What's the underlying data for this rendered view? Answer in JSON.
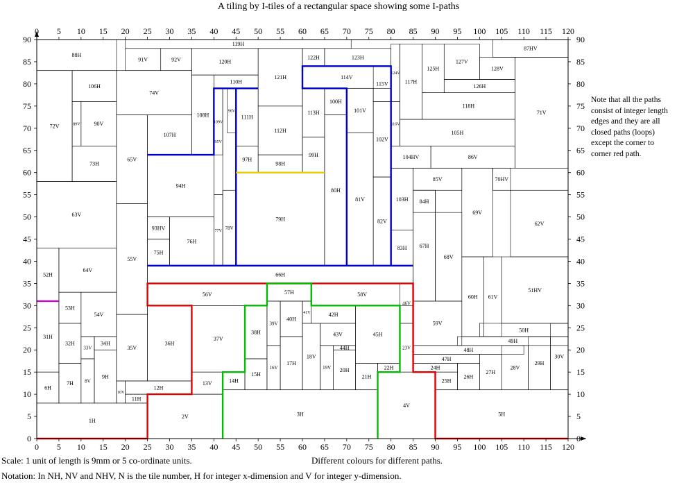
{
  "title": "A tiling by I-tiles of a rectangular space showing some I-paths",
  "note": "Note that all the paths consist of integer length edges and they are all closed paths (loops) except the corner to corner red path.",
  "scale_text": "Scale: 1 unit of length is 9mm or 5 co-ordinate units.",
  "colours_text": "Different colours for different paths.",
  "notation_text": "Notation: In NH, NV and NHV, N is the tile number, H for integer x-dimension and V for integer y-dimension.",
  "axes": {
    "x_ticks": [
      0,
      5,
      10,
      15,
      20,
      25,
      30,
      35,
      40,
      45,
      50,
      55,
      60,
      65,
      70,
      75,
      80,
      85,
      90,
      95,
      100,
      105,
      110,
      115,
      120
    ],
    "y_ticks": [
      0,
      5,
      10,
      15,
      20,
      25,
      30,
      35,
      40,
      45,
      50,
      55,
      60,
      65,
      70,
      75,
      80,
      85,
      90
    ],
    "x_range": [
      0,
      120
    ],
    "y_range": [
      0,
      90
    ]
  },
  "tiles": [
    {
      "id": "1H",
      "x": [
        0,
        25
      ],
      "y": [
        0,
        8
      ]
    },
    {
      "id": "2V",
      "x": [
        25,
        42
      ],
      "y": [
        0,
        10
      ]
    },
    {
      "id": "3H",
      "x": [
        42,
        77
      ],
      "y": [
        0,
        11
      ]
    },
    {
      "id": "4V",
      "x": [
        77,
        90
      ],
      "y": [
        0,
        15
      ]
    },
    {
      "id": "5H",
      "x": [
        90,
        120
      ],
      "y": [
        0,
        11
      ]
    },
    {
      "id": "6H",
      "x": [
        0,
        5
      ],
      "y": [
        8,
        15
      ]
    },
    {
      "id": "7H",
      "x": [
        5,
        10
      ],
      "y": [
        8,
        17
      ]
    },
    {
      "id": "8V",
      "x": [
        10,
        13
      ],
      "y": [
        8,
        18
      ]
    },
    {
      "id": "9H",
      "x": [
        13,
        18
      ],
      "y": [
        8,
        20
      ]
    },
    {
      "id": "10V",
      "x": [
        18,
        20
      ],
      "y": [
        8,
        13
      ]
    },
    {
      "id": "11H",
      "x": [
        20,
        25
      ],
      "y": [
        8,
        10
      ]
    },
    {
      "id": "12H",
      "x": [
        20,
        35
      ],
      "y": [
        10,
        13
      ]
    },
    {
      "id": "13V",
      "x": [
        35,
        42
      ],
      "y": [
        10,
        15
      ]
    },
    {
      "id": "14H",
      "x": [
        42,
        47
      ],
      "y": [
        11,
        15
      ]
    },
    {
      "id": "15H",
      "x": [
        47,
        52
      ],
      "y": [
        11,
        18
      ]
    },
    {
      "id": "16V",
      "x": [
        52,
        55
      ],
      "y": [
        11,
        21
      ]
    },
    {
      "id": "17H",
      "x": [
        55,
        60
      ],
      "y": [
        11,
        23
      ]
    },
    {
      "id": "18V",
      "x": [
        60,
        64
      ],
      "y": [
        11,
        26
      ]
    },
    {
      "id": "19V",
      "x": [
        64,
        67
      ],
      "y": [
        11,
        21
      ]
    },
    {
      "id": "20H",
      "x": [
        67,
        72
      ],
      "y": [
        11,
        20
      ]
    },
    {
      "id": "21H",
      "x": [
        72,
        77
      ],
      "y": [
        11,
        17
      ]
    },
    {
      "id": "22H",
      "x": [
        77,
        82
      ],
      "y": [
        15,
        17
      ]
    },
    {
      "id": "23V",
      "x": [
        82,
        85
      ],
      "y": [
        15,
        26
      ]
    },
    {
      "id": "24H",
      "x": [
        85,
        95
      ],
      "y": [
        15,
        17
      ]
    },
    {
      "id": "25H",
      "x": [
        90,
        95
      ],
      "y": [
        11,
        15
      ]
    },
    {
      "id": "26H",
      "x": [
        95,
        100
      ],
      "y": [
        11,
        17
      ]
    },
    {
      "id": "27H",
      "x": [
        100,
        105
      ],
      "y": [
        11,
        19
      ]
    },
    {
      "id": "28V",
      "x": [
        105,
        111
      ],
      "y": [
        11,
        21
      ]
    },
    {
      "id": "29H",
      "x": [
        111,
        116
      ],
      "y": [
        11,
        23
      ]
    },
    {
      "id": "30V",
      "x": [
        116,
        120
      ],
      "y": [
        11,
        26
      ]
    },
    {
      "id": "31H",
      "x": [
        0,
        5
      ],
      "y": [
        15,
        31
      ]
    },
    {
      "id": "32H",
      "x": [
        5,
        10
      ],
      "y": [
        17,
        26
      ]
    },
    {
      "id": "33V",
      "x": [
        10,
        13
      ],
      "y": [
        18,
        23
      ]
    },
    {
      "id": "34H",
      "x": [
        13,
        18
      ],
      "y": [
        20,
        23
      ]
    },
    {
      "id": "35V",
      "x": [
        18,
        25
      ],
      "y": [
        13,
        28
      ]
    },
    {
      "id": "36H",
      "x": [
        25,
        35
      ],
      "y": [
        13,
        30
      ]
    },
    {
      "id": "37V",
      "x": [
        35,
        47
      ],
      "y": [
        15,
        30
      ]
    },
    {
      "id": "38H",
      "x": [
        47,
        52
      ],
      "y": [
        18,
        30
      ]
    },
    {
      "id": "39V",
      "x": [
        52,
        55
      ],
      "y": [
        21,
        31
      ]
    },
    {
      "id": "40H",
      "x": [
        55,
        60
      ],
      "y": [
        23,
        31
      ]
    },
    {
      "id": "41V",
      "x": [
        60,
        62
      ],
      "y": [
        26,
        31
      ]
    },
    {
      "id": "42H",
      "x": [
        62,
        72
      ],
      "y": [
        26,
        30
      ]
    },
    {
      "id": "43V",
      "x": [
        64,
        72
      ],
      "y": [
        21,
        26
      ]
    },
    {
      "id": "44H",
      "x": [
        67,
        72
      ],
      "y": [
        20,
        21
      ]
    },
    {
      "id": "45H",
      "x": [
        72,
        82
      ],
      "y": [
        17,
        30
      ]
    },
    {
      "id": "46V",
      "x": [
        82,
        85
      ],
      "y": [
        26,
        35
      ]
    },
    {
      "id": "47H",
      "x": [
        85,
        100
      ],
      "y": [
        17,
        19
      ]
    },
    {
      "id": "48H",
      "x": [
        85,
        110
      ],
      "y": [
        19,
        21
      ]
    },
    {
      "id": "49H",
      "x": [
        95,
        120
      ],
      "y": [
        21,
        23
      ]
    },
    {
      "id": "50H",
      "x": [
        100,
        120
      ],
      "y": [
        23,
        26
      ]
    },
    {
      "id": "51HV",
      "x": [
        105,
        120
      ],
      "y": [
        26,
        41
      ]
    },
    {
      "id": "52H",
      "x": [
        0,
        5
      ],
      "y": [
        31,
        43
      ]
    },
    {
      "id": "53H",
      "x": [
        5,
        10
      ],
      "y": [
        26,
        33
      ]
    },
    {
      "id": "54V",
      "x": [
        10,
        18
      ],
      "y": [
        23,
        33
      ]
    },
    {
      "id": "55V",
      "x": [
        18,
        25
      ],
      "y": [
        28,
        53
      ]
    },
    {
      "id": "56V",
      "x": [
        25,
        52
      ],
      "y": [
        30,
        35
      ]
    },
    {
      "id": "57H",
      "x": [
        52,
        62
      ],
      "y": [
        31,
        35
      ]
    },
    {
      "id": "58V",
      "x": [
        62,
        85
      ],
      "y": [
        30,
        35
      ]
    },
    {
      "id": "59V",
      "x": [
        85,
        96
      ],
      "y": [
        21,
        31
      ]
    },
    {
      "id": "60H",
      "x": [
        96,
        101
      ],
      "y": [
        23,
        41
      ]
    },
    {
      "id": "61V",
      "x": [
        101,
        105
      ],
      "y": [
        23,
        41
      ]
    },
    {
      "id": "62V",
      "x": [
        107,
        120
      ],
      "y": [
        41,
        56
      ]
    },
    {
      "id": "63V",
      "x": [
        0,
        18
      ],
      "y": [
        43,
        58
      ]
    },
    {
      "id": "64V",
      "x": [
        5,
        18
      ],
      "y": [
        33,
        43
      ]
    },
    {
      "id": "65V",
      "x": [
        18,
        25
      ],
      "y": [
        53,
        73
      ]
    },
    {
      "id": "66H",
      "x": [
        25,
        85
      ],
      "y": [
        35,
        39
      ]
    },
    {
      "id": "67H",
      "x": [
        85,
        90
      ],
      "y": [
        31,
        56
      ]
    },
    {
      "id": "68V",
      "x": [
        90,
        96
      ],
      "y": [
        31,
        51
      ]
    },
    {
      "id": "69V",
      "x": [
        96,
        103
      ],
      "y": [
        41,
        61
      ]
    },
    {
      "id": "70HV",
      "x": [
        103,
        107
      ],
      "y": [
        56,
        61
      ]
    },
    {
      "id": "71V",
      "x": [
        108,
        120
      ],
      "y": [
        61,
        86
      ]
    },
    {
      "id": "72V",
      "x": [
        0,
        8
      ],
      "y": [
        58,
        83
      ]
    },
    {
      "id": "73H",
      "x": [
        8,
        18
      ],
      "y": [
        58,
        66
      ]
    },
    {
      "id": "74V",
      "x": [
        18,
        35
      ],
      "y": [
        73,
        83
      ]
    },
    {
      "id": "75H",
      "x": [
        25,
        30
      ],
      "y": [
        39,
        45
      ]
    },
    {
      "id": "76H",
      "x": [
        30,
        40
      ],
      "y": [
        39,
        50
      ]
    },
    {
      "id": "77V",
      "x": [
        40,
        42
      ],
      "y": [
        39,
        55
      ]
    },
    {
      "id": "78V",
      "x": [
        42,
        45
      ],
      "y": [
        39,
        56
      ]
    },
    {
      "id": "79H",
      "x": [
        45,
        65
      ],
      "y": [
        39,
        60
      ]
    },
    {
      "id": "80H",
      "x": [
        65,
        70
      ],
      "y": [
        39,
        73
      ]
    },
    {
      "id": "81V",
      "x": [
        70,
        76
      ],
      "y": [
        39,
        69
      ]
    },
    {
      "id": "82V",
      "x": [
        76,
        80
      ],
      "y": [
        39,
        59
      ]
    },
    {
      "id": "83H",
      "x": [
        80,
        85
      ],
      "y": [
        39,
        47
      ]
    },
    {
      "id": "84H",
      "x": [
        85,
        90
      ],
      "y": [
        51,
        56
      ]
    },
    {
      "id": "85V",
      "x": [
        85,
        96
      ],
      "y": [
        56,
        61
      ]
    },
    {
      "id": "86V",
      "x": [
        89,
        108
      ],
      "y": [
        61,
        66
      ]
    },
    {
      "id": "87HV",
      "x": [
        103,
        120
      ],
      "y": [
        86,
        91
      ]
    },
    {
      "id": "88H",
      "x": [
        0,
        18
      ],
      "y": [
        83,
        91
      ]
    },
    {
      "id": "89V",
      "x": [
        8,
        10
      ],
      "y": [
        66,
        76
      ]
    },
    {
      "id": "90V",
      "x": [
        10,
        18
      ],
      "y": [
        66,
        76
      ]
    },
    {
      "id": "91V",
      "x": [
        20,
        28
      ],
      "y": [
        83,
        88
      ]
    },
    {
      "id": "92V",
      "x": [
        28,
        35
      ],
      "y": [
        83,
        88
      ]
    },
    {
      "id": "93HV",
      "x": [
        25,
        30
      ],
      "y": [
        45,
        50
      ]
    },
    {
      "id": "94H",
      "x": [
        25,
        40
      ],
      "y": [
        50,
        64
      ]
    },
    {
      "id": "95V",
      "x": [
        40,
        42
      ],
      "y": [
        55,
        79
      ]
    },
    {
      "id": "96V",
      "x": [
        43,
        45
      ],
      "y": [
        69,
        79
      ]
    },
    {
      "id": "97H",
      "x": [
        45,
        50
      ],
      "y": [
        60,
        66
      ]
    },
    {
      "id": "98H",
      "x": [
        50,
        60
      ],
      "y": [
        60,
        64
      ]
    },
    {
      "id": "99H",
      "x": [
        60,
        65
      ],
      "y": [
        60,
        68
      ]
    },
    {
      "id": "100H",
      "x": [
        65,
        70
      ],
      "y": [
        73,
        79
      ]
    },
    {
      "id": "101V",
      "x": [
        70,
        76
      ],
      "y": [
        69,
        79
      ]
    },
    {
      "id": "102V",
      "x": [
        76,
        80
      ],
      "y": [
        59,
        76
      ]
    },
    {
      "id": "103H",
      "x": [
        80,
        85
      ],
      "y": [
        47,
        61
      ]
    },
    {
      "id": "104HV",
      "x": [
        80,
        89
      ],
      "y": [
        61,
        66
      ]
    },
    {
      "id": "105H",
      "x": [
        82,
        108
      ],
      "y": [
        66,
        72
      ]
    },
    {
      "id": "106H",
      "x": [
        8,
        18
      ],
      "y": [
        76,
        83
      ]
    },
    {
      "id": "107H",
      "x": [
        25,
        35
      ],
      "y": [
        64,
        73
      ]
    },
    {
      "id": "108H",
      "x": [
        35,
        40
      ],
      "y": [
        64,
        82
      ]
    },
    {
      "id": "109V",
      "x": [
        40,
        42
      ],
      "y": [
        64,
        79
      ]
    },
    {
      "id": "110H",
      "x": [
        40,
        50
      ],
      "y": [
        79,
        82
      ]
    },
    {
      "id": "111H",
      "x": [
        45,
        50
      ],
      "y": [
        66,
        79
      ]
    },
    {
      "id": "112H",
      "x": [
        50,
        60
      ],
      "y": [
        64,
        75
      ]
    },
    {
      "id": "113H",
      "x": [
        60,
        65
      ],
      "y": [
        68,
        79
      ]
    },
    {
      "id": "114V",
      "x": [
        60,
        80
      ],
      "y": [
        79,
        84
      ]
    },
    {
      "id": "115V",
      "x": [
        76,
        80
      ],
      "y": [
        76,
        84
      ]
    },
    {
      "id": "116V",
      "x": [
        80,
        82
      ],
      "y": [
        66,
        76
      ]
    },
    {
      "id": "117H",
      "x": [
        82,
        87
      ],
      "y": [
        72,
        89
      ]
    },
    {
      "id": "118H",
      "x": [
        87,
        108
      ],
      "y": [
        72,
        78
      ]
    },
    {
      "id": "119H",
      "x": [
        20,
        71
      ],
      "y": [
        88,
        91
      ]
    },
    {
      "id": "120H",
      "x": [
        35,
        50
      ],
      "y": [
        82,
        88
      ]
    },
    {
      "id": "121H",
      "x": [
        50,
        60
      ],
      "y": [
        75,
        88
      ]
    },
    {
      "id": "122H",
      "x": [
        60,
        65
      ],
      "y": [
        84,
        88
      ]
    },
    {
      "id": "123H",
      "x": [
        65,
        80
      ],
      "y": [
        84,
        88
      ]
    },
    {
      "id": "124V",
      "x": [
        80,
        82
      ],
      "y": [
        76,
        89
      ]
    },
    {
      "id": "125H",
      "x": [
        87,
        92
      ],
      "y": [
        78,
        89
      ]
    },
    {
      "id": "126H",
      "x": [
        92,
        108
      ],
      "y": [
        78,
        81
      ]
    },
    {
      "id": "127V",
      "x": [
        92,
        100
      ],
      "y": [
        81,
        89
      ]
    },
    {
      "id": "128V",
      "x": [
        100,
        108
      ],
      "y": [
        81,
        86
      ]
    }
  ],
  "paths": [
    {
      "name": "red",
      "color": "#e00000",
      "points": [
        [
          0,
          0
        ],
        [
          25,
          0
        ],
        [
          25,
          10
        ],
        [
          35,
          10
        ],
        [
          35,
          30
        ],
        [
          25,
          30
        ],
        [
          25,
          35
        ],
        [
          85,
          35
        ],
        [
          85,
          15
        ],
        [
          90,
          15
        ],
        [
          90,
          0
        ],
        [
          120,
          0
        ]
      ]
    },
    {
      "name": "green",
      "color": "#00bb00",
      "points": [
        [
          42,
          0
        ],
        [
          42,
          15
        ],
        [
          47,
          15
        ],
        [
          47,
          30
        ],
        [
          52,
          30
        ],
        [
          52,
          35
        ],
        [
          62,
          35
        ],
        [
          62,
          30
        ],
        [
          82,
          30
        ],
        [
          82,
          15
        ],
        [
          77,
          15
        ],
        [
          77,
          0
        ]
      ]
    },
    {
      "name": "blue",
      "color": "#0000cc",
      "points": [
        [
          25,
          39
        ],
        [
          85,
          39
        ],
        [
          80,
          39
        ],
        [
          80,
          84
        ],
        [
          60,
          84
        ],
        [
          60,
          79
        ],
        [
          70,
          79
        ],
        [
          70,
          39
        ],
        [
          45,
          39
        ],
        [
          45,
          79
        ],
        [
          50,
          79
        ],
        [
          40,
          79
        ],
        [
          40,
          64
        ],
        [
          25,
          64
        ]
      ]
    },
    {
      "name": "yellow",
      "color": "#e6cc00",
      "points": [
        [
          45,
          60
        ],
        [
          65,
          60
        ]
      ]
    },
    {
      "name": "magenta",
      "color": "#cc00cc",
      "points": [
        [
          0,
          31
        ],
        [
          5,
          31
        ]
      ]
    }
  ]
}
